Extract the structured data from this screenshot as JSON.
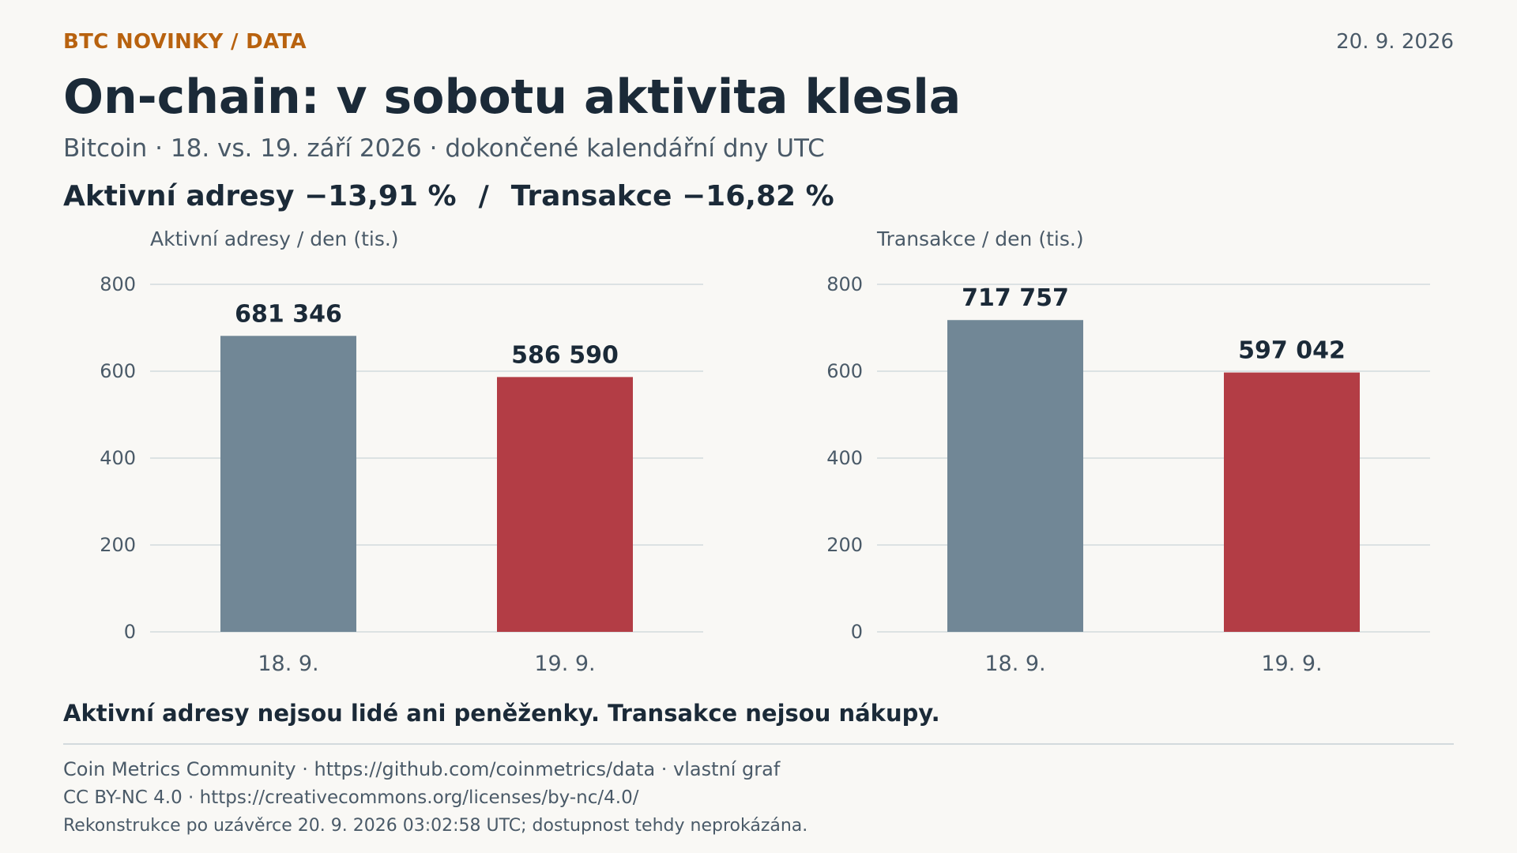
{
  "header": {
    "kicker": "BTC NOVINKY / DATA",
    "date": "20. 9. 2026",
    "title": "On-chain: v sobotu aktivita klesla",
    "subtitle": "Bitcoin · 18. vs. 19. září 2026 · dokončené kalendářní dny UTC",
    "headline_left": "Aktivní adresy −13,91 %",
    "headline_sep": "/",
    "headline_right": "Transakce −16,82 %"
  },
  "chart_data": [
    {
      "type": "bar",
      "title": "Aktivní adresy / den (tis.)",
      "categories": [
        "18. 9.",
        "19. 9."
      ],
      "values": [
        681.346,
        586.59
      ],
      "value_labels": [
        "681 346",
        "586 590"
      ],
      "colors": [
        "#718796",
        "#b33d45"
      ],
      "ylim": [
        0,
        800
      ],
      "yticks": [
        0,
        200,
        400,
        600,
        800
      ],
      "grid": true
    },
    {
      "type": "bar",
      "title": "Transakce / den (tis.)",
      "categories": [
        "18. 9.",
        "19. 9."
      ],
      "values": [
        717.757,
        597.042
      ],
      "value_labels": [
        "717 757",
        "597 042"
      ],
      "colors": [
        "#718796",
        "#b33d45"
      ],
      "ylim": [
        0,
        800
      ],
      "yticks": [
        0,
        200,
        400,
        600,
        800
      ],
      "grid": true
    }
  ],
  "footer": {
    "note": "Aktivní adresy nejsou lidé ani peněženky. Transakce nejsou nákupy.",
    "source": "Coin Metrics Community · https://github.com/coinmetrics/data · vlastní graf",
    "license": "CC BY-NC 4.0 · https://creativecommons.org/licenses/by-nc/4.0/",
    "disclaimer": "Rekonstrukce po uzávěrce 20. 9. 2026 03:02:58 UTC; dostupnost tehdy neprokázána."
  }
}
